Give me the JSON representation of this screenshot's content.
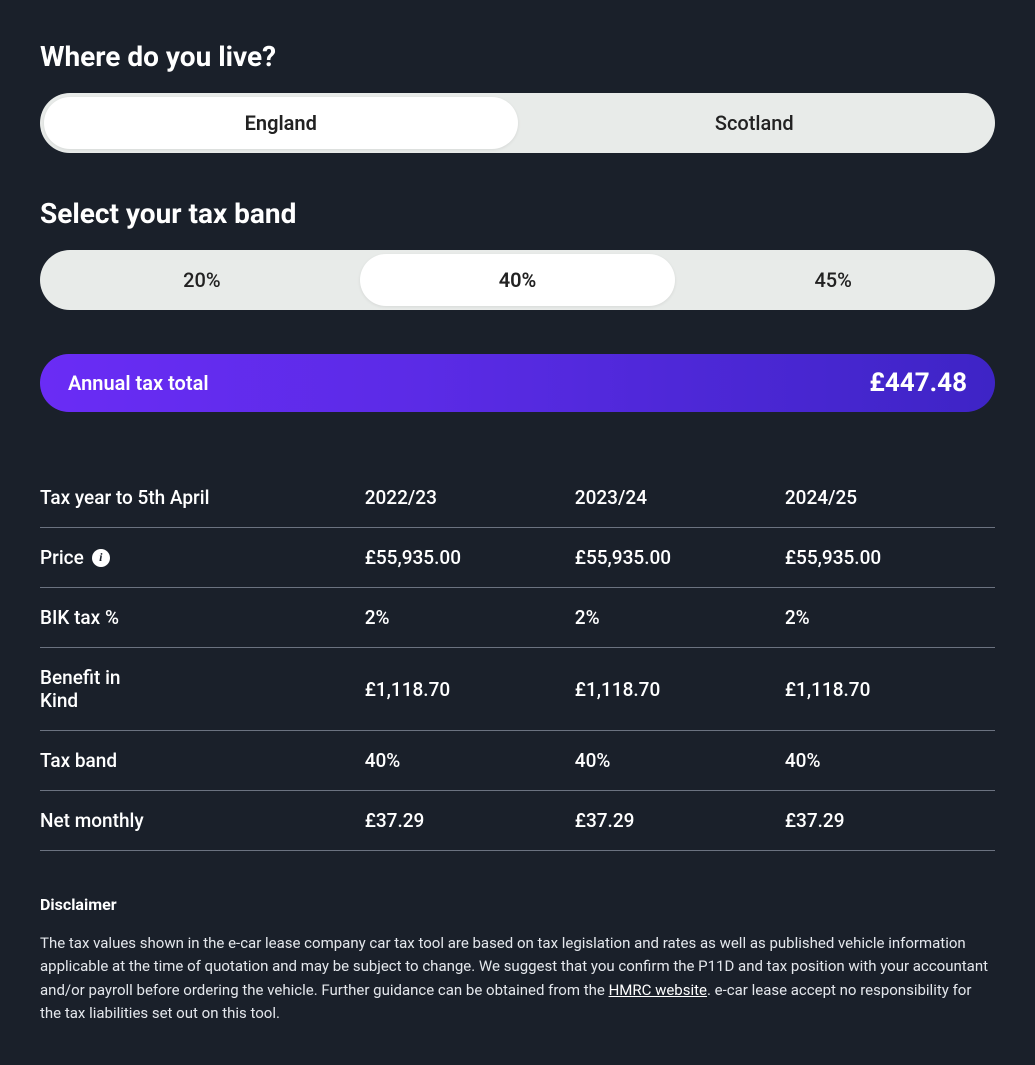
{
  "colors": {
    "background": "#1a202a",
    "text": "#ffffff",
    "segmented_bg": "#e8ebe9",
    "segmented_active_bg": "#ffffff",
    "segmented_text": "#222222",
    "pill_gradient_start": "#6a2cf5",
    "pill_gradient_end": "#3e24c6",
    "row_border": "#6b7280",
    "disclaimer_text": "#e4e7ec"
  },
  "typography": {
    "heading_size_pt": 21,
    "body_size_pt": 14,
    "total_value_size_pt": 20,
    "font_family": "system-ui"
  },
  "location": {
    "heading": "Where do you live?",
    "options": [
      "England",
      "Scotland"
    ],
    "selected_index": 0
  },
  "tax_band": {
    "heading": "Select your tax band",
    "options": [
      "20%",
      "40%",
      "45%"
    ],
    "selected_index": 1
  },
  "total": {
    "label": "Annual tax total",
    "value": "£447.48"
  },
  "table": {
    "header_label": "Tax year to 5th April",
    "year_columns": [
      "2022/23",
      "2023/24",
      "2024/25"
    ],
    "rows": [
      {
        "label": "Price",
        "has_info": true,
        "values": [
          "£55,935.00",
          "£55,935.00",
          "£55,935.00"
        ]
      },
      {
        "label": "BIK tax %",
        "has_info": false,
        "values": [
          "2%",
          "2%",
          "2%"
        ]
      },
      {
        "label": "Benefit in Kind",
        "has_info": false,
        "values": [
          "£1,118.70",
          "£1,118.70",
          "£1,118.70"
        ]
      },
      {
        "label": "Tax band",
        "has_info": false,
        "values": [
          "40%",
          "40%",
          "40%"
        ]
      },
      {
        "label": "Net monthly",
        "has_info": false,
        "values": [
          "£37.29",
          "£37.29",
          "£37.29"
        ]
      }
    ]
  },
  "disclaimer": {
    "heading": "Disclaimer",
    "text_pre": "The tax values shown in the e-car lease company car tax tool are based on tax legislation and rates as well as published vehicle information applicable at the time of quotation and may be subject to change. We suggest that you confirm the P11D and tax position with your accountant and/or payroll before ordering the vehicle. Further guidance can be obtained from the ",
    "link_text": "HMRC website",
    "text_post": ". e-car lease accept no responsibility for the tax liabilities set out on this tool."
  }
}
